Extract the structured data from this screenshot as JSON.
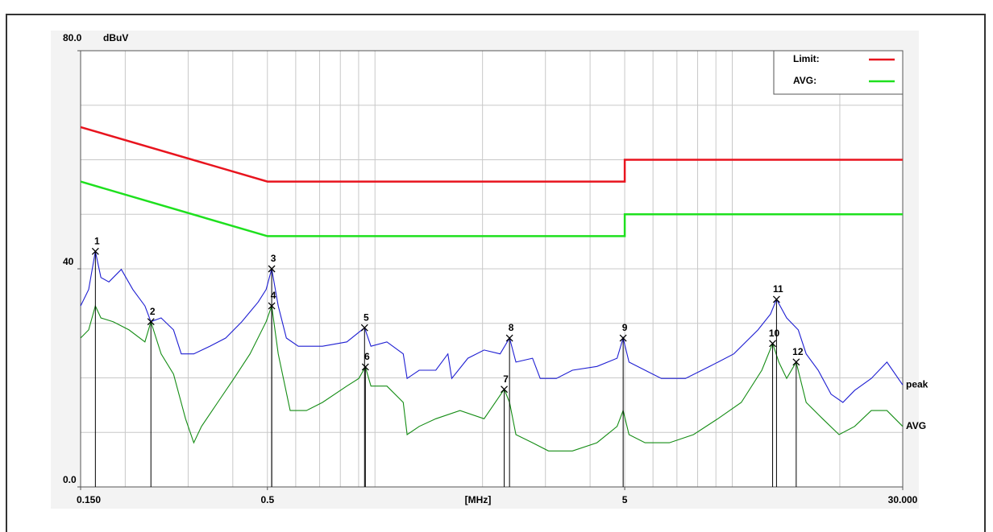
{
  "chart_data": {
    "type": "line",
    "y_unit": "dBuV",
    "x_axis_label": "[MHz]",
    "xscale": "log",
    "xlim": [
      0.15,
      30
    ],
    "ylim": [
      0,
      80
    ],
    "xticks": [
      {
        "value": 0.15,
        "label": "0.150"
      },
      0.5,
      5,
      {
        "value": 30,
        "label": "30.000"
      }
    ],
    "yticks": [
      {
        "value": 80,
        "label": "80.0"
      },
      40,
      {
        "value": 0,
        "label": "0.0"
      }
    ],
    "xgrid": [
      0.2,
      0.3,
      0.4,
      0.5,
      0.6,
      0.7,
      0.8,
      0.9,
      1,
      2,
      3,
      4,
      5,
      6,
      7,
      8,
      9,
      10,
      20
    ],
    "ygrid": [
      10,
      20,
      30,
      40,
      50,
      60,
      70
    ],
    "grid": true,
    "legend": "top-right",
    "series": [
      {
        "name": "Limit:",
        "color": "#e8141e",
        "legend": true,
        "x": [
          0.15,
          0.5,
          5,
          5,
          30
        ],
        "values": [
          66,
          56,
          56,
          60,
          60
        ]
      },
      {
        "name": "AVG:",
        "color": "#1ee01e",
        "legend": true,
        "x": [
          0.15,
          0.5,
          5,
          5,
          30
        ],
        "values": [
          56,
          46,
          46,
          50,
          50
        ]
      },
      {
        "name": "peak",
        "color": "#1e1ed2",
        "end_label": true,
        "x": [
          0.15,
          0.158,
          0.165,
          0.171,
          0.18,
          0.195,
          0.21,
          0.227,
          0.236,
          0.252,
          0.273,
          0.287,
          0.311,
          0.345,
          0.382,
          0.424,
          0.471,
          0.496,
          0.514,
          0.536,
          0.565,
          0.61,
          0.713,
          0.834,
          0.935,
          0.974,
          1.08,
          1.2,
          1.23,
          1.33,
          1.48,
          1.6,
          1.64,
          1.82,
          2.02,
          2.24,
          2.38,
          2.48,
          2.76,
          2.9,
          3.22,
          3.57,
          4.18,
          4.76,
          4.95,
          5.14,
          5.7,
          6.33,
          7.4,
          8.64,
          10.1,
          11.8,
          12.8,
          13.3,
          14.2,
          15.3,
          16.1,
          17.4,
          18.9,
          20.4,
          22,
          24.5,
          27.1,
          30
        ],
        "values": [
          33.2,
          36.2,
          43.2,
          38.4,
          37.6,
          39.9,
          36.2,
          33.2,
          30.3,
          31,
          28.8,
          24.4,
          24.4,
          25.8,
          27.3,
          30.3,
          33.9,
          36.2,
          40,
          33.2,
          27.3,
          25.8,
          25.8,
          26.6,
          29.2,
          25.8,
          26.6,
          24.4,
          19.9,
          21.4,
          21.4,
          24.4,
          19.9,
          23.6,
          25.1,
          24.4,
          27.3,
          22.9,
          23.6,
          19.9,
          19.9,
          21.4,
          22.1,
          23.6,
          27.3,
          22.9,
          21.4,
          19.9,
          19.9,
          22.1,
          24.4,
          28.8,
          31.7,
          34.4,
          31,
          28.8,
          24.4,
          21.4,
          17,
          15.5,
          17.7,
          19.9,
          22.9,
          18.7
        ]
      },
      {
        "name": "AVG",
        "color": "#148c14",
        "end_label": true,
        "x": [
          0.15,
          0.158,
          0.165,
          0.171,
          0.185,
          0.205,
          0.227,
          0.236,
          0.252,
          0.273,
          0.295,
          0.311,
          0.327,
          0.363,
          0.403,
          0.447,
          0.496,
          0.514,
          0.536,
          0.579,
          0.643,
          0.713,
          0.834,
          0.901,
          0.94,
          0.974,
          1.08,
          1.2,
          1.23,
          1.33,
          1.48,
          1.73,
          2.02,
          2.3,
          2.38,
          2.48,
          2.76,
          3.06,
          3.57,
          4.18,
          4.76,
          4.95,
          5.14,
          5.7,
          6.67,
          7.79,
          9.11,
          10.6,
          12.1,
          12.97,
          13.5,
          14.2,
          15.1,
          16.1,
          17.9,
          19.9,
          22,
          24.5,
          27.1,
          30
        ],
        "values": [
          27.3,
          28.8,
          33.2,
          31,
          30.3,
          28.8,
          26.6,
          30.3,
          24.4,
          20.7,
          12.5,
          8.1,
          11.1,
          15.5,
          19.9,
          24.4,
          30.3,
          33.2,
          24.4,
          14,
          14,
          15.5,
          18.5,
          19.9,
          22,
          18.5,
          18.5,
          15.5,
          9.6,
          11.1,
          12.5,
          14,
          12.5,
          17.9,
          15.5,
          9.6,
          8.1,
          6.6,
          6.6,
          8.1,
          11.1,
          14,
          9.6,
          8.1,
          8.1,
          9.6,
          12.5,
          15.5,
          21.4,
          26.3,
          22.9,
          19.9,
          22.9,
          15.5,
          12.5,
          9.6,
          11.1,
          14,
          14,
          11.1
        ]
      }
    ],
    "markers": [
      {
        "label": "1",
        "x": 0.165,
        "value": 43.2
      },
      {
        "label": "2",
        "x": 0.236,
        "value": 30.3
      },
      {
        "label": "3",
        "x": 0.514,
        "value": 40
      },
      {
        "label": "4",
        "x": 0.514,
        "value": 33.2
      },
      {
        "label": "5",
        "x": 0.935,
        "value": 29.2
      },
      {
        "label": "6",
        "x": 0.94,
        "value": 22
      },
      {
        "label": "7",
        "x": 2.3,
        "value": 17.9
      },
      {
        "label": "8",
        "x": 2.38,
        "value": 27.3
      },
      {
        "label": "9",
        "x": 4.95,
        "value": 27.3
      },
      {
        "label": "10",
        "x": 12.97,
        "value": 26.3
      },
      {
        "label": "11",
        "x": 13.3,
        "value": 34.4
      },
      {
        "label": "12",
        "x": 15.1,
        "value": 22.9
      }
    ]
  }
}
